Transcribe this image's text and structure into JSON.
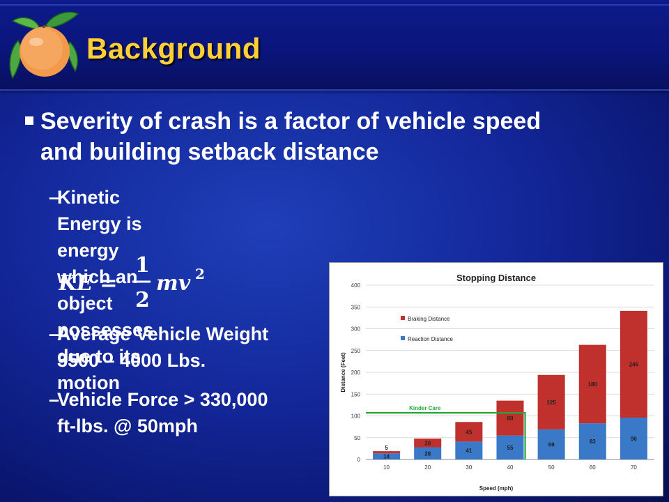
{
  "slide": {
    "title": "Background",
    "bullet_main": "Severity of crash is a factor of vehicle speed and building setback distance",
    "bullet_main_line1": "Severity of crash is a factor of vehicle speed",
    "bullet_main_line2": "and building setback distance",
    "sub_bullets": [
      {
        "line1": "Kinetic Energy is energy which an object",
        "line2": "possesses due to its motion"
      },
      {
        "line1": "Average Vehicle Weight",
        "line2": "3500 – 4000 Lbs."
      },
      {
        "line1": "Vehicle Force > 330,000",
        "line2": "ft-lbs. @ 50mph"
      }
    ],
    "dash": "–",
    "formula": {
      "lhs": "KE =",
      "num": "1",
      "den": "2",
      "rhs": "mv",
      "exp": "2"
    },
    "logo_icon": "orange-fruit-icon",
    "colors": {
      "title": "#ffcf3a",
      "background": "#13279a",
      "braking": "#c0312e",
      "reaction": "#3a78c8",
      "kinder_line": "#22a83a"
    }
  },
  "chart_data": {
    "type": "bar",
    "stacked": true,
    "title": "Stopping Distance",
    "xlabel": "Speed (mph)",
    "ylabel": "Distance (Feet)",
    "categories": [
      "10",
      "20",
      "30",
      "40",
      "50",
      "60",
      "70"
    ],
    "series": [
      {
        "name": "Reaction Distance",
        "values": [
          14,
          28,
          41,
          55,
          69,
          83,
          96
        ]
      },
      {
        "name": "Braking Distance",
        "values": [
          5,
          20,
          45,
          80,
          125,
          180,
          245
        ]
      }
    ],
    "ylim": [
      0,
      400
    ],
    "yticks": [
      "0",
      "50",
      "100",
      "150",
      "200",
      "250",
      "300",
      "350",
      "400"
    ],
    "grid": true,
    "legend_placement": "top-left",
    "annotation": {
      "label": "Kinder Care",
      "y": 107,
      "ends_at_category": "40"
    }
  }
}
